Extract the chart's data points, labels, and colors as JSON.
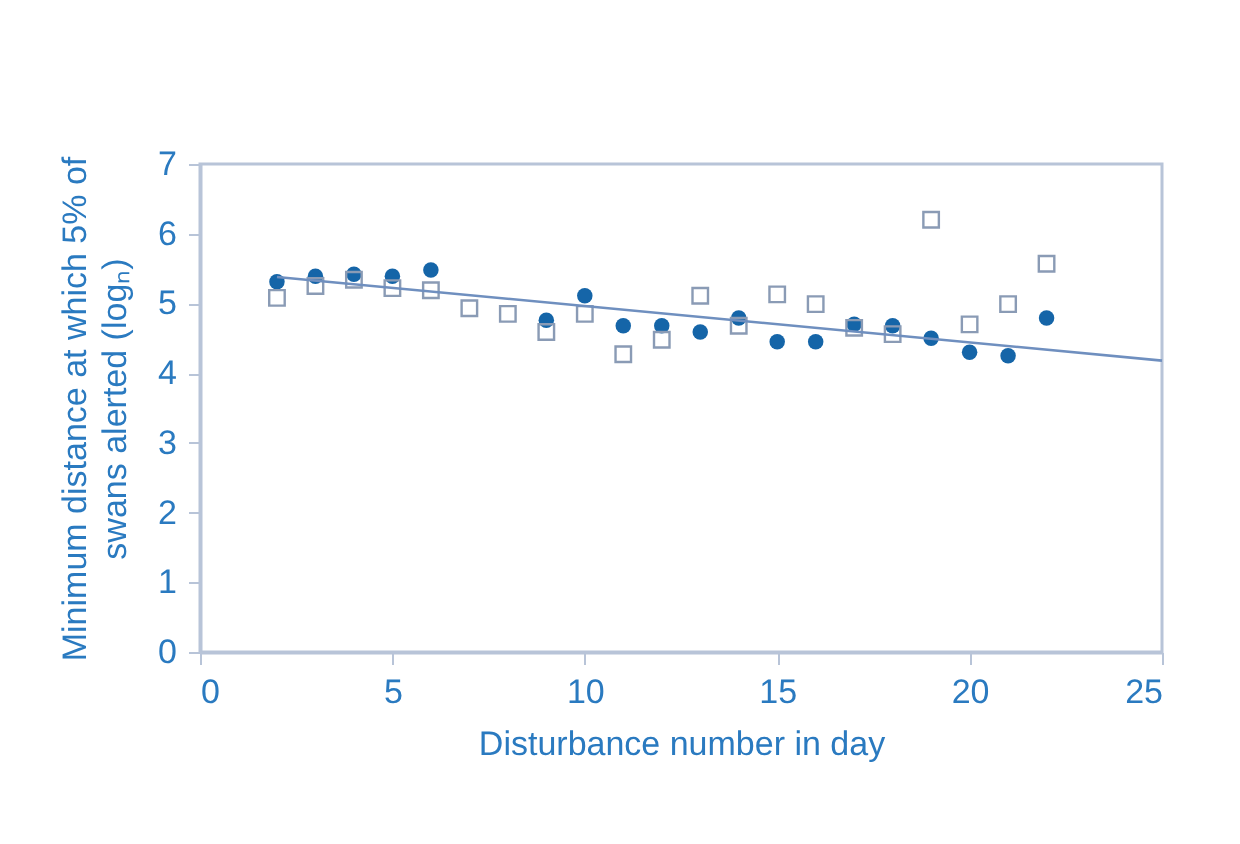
{
  "chart_data": {
    "type": "scatter",
    "xlabel": "Disturbance number in day",
    "ylabel": "Minimum distance at which 5% of swans alerted (logₙ)",
    "xlim": [
      0,
      25
    ],
    "xticks": [
      0,
      5,
      10,
      15,
      20,
      25
    ],
    "ylim": [
      0,
      7
    ],
    "yticks": [
      0,
      1,
      2,
      3,
      4,
      5,
      6,
      7
    ],
    "grid": false,
    "series": [
      {
        "color": "#1565a8",
        "marker": "circle",
        "x": [
          2,
          3,
          4,
          5,
          6,
          9,
          10,
          11,
          12,
          13,
          14,
          15,
          16,
          17,
          18,
          19,
          20,
          21,
          22
        ],
        "values": [
          5.31,
          5.39,
          5.42,
          5.39,
          5.48,
          4.76,
          5.11,
          4.68,
          4.68,
          4.59,
          4.79,
          4.45,
          4.45,
          4.7,
          4.68,
          4.5,
          4.3,
          4.25,
          4.79
        ]
      },
      {
        "color": "#8a9bb5",
        "marker": "square",
        "x": [
          2,
          3,
          4,
          5,
          6,
          7,
          8,
          9,
          10,
          11,
          12,
          13,
          14,
          15,
          16,
          17,
          18,
          19,
          20,
          21,
          22
        ],
        "values": [
          5.08,
          5.25,
          5.34,
          5.22,
          5.19,
          4.93,
          4.85,
          4.59,
          4.85,
          4.27,
          4.48,
          5.11,
          4.68,
          5.13,
          4.99,
          4.65,
          4.56,
          6.2,
          4.7,
          4.99,
          5.57
        ]
      },
      {
        "type": "line",
        "color": "#6f8fbf",
        "marker": "none",
        "x": [
          2,
          25
        ],
        "values": [
          5.38,
          4.18
        ]
      }
    ]
  }
}
